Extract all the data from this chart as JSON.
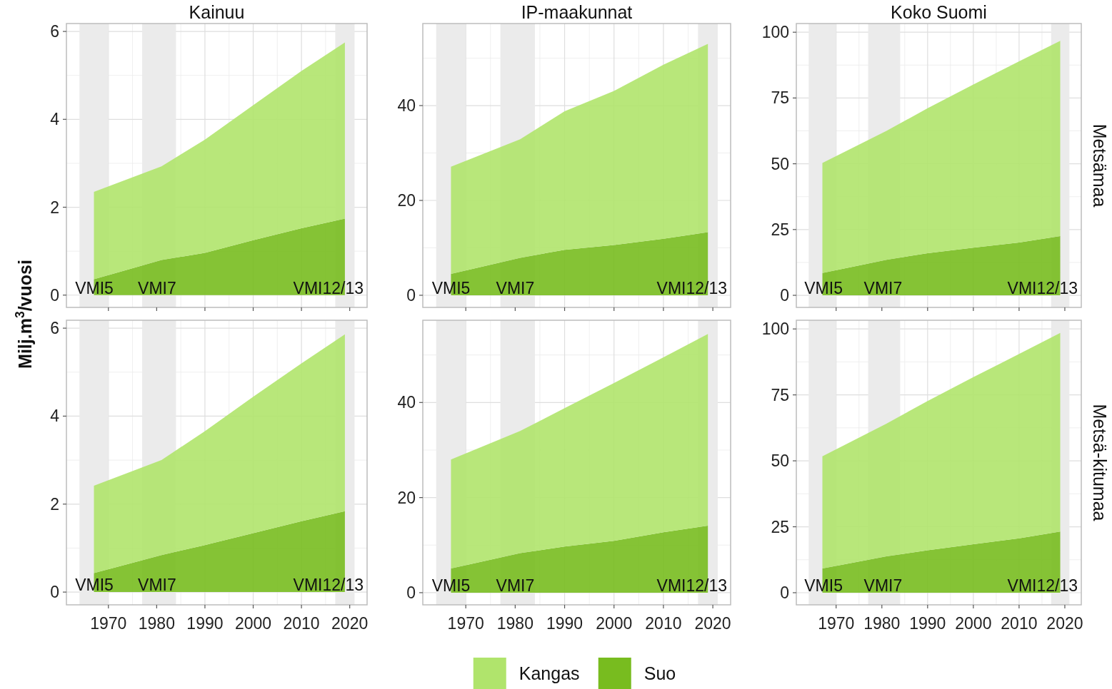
{
  "chart_data": [
    {
      "type": "area",
      "title": "Kainuu",
      "ylabel": "Milj.m$^{3}$/vuosi",
      "stacked": true,
      "x": [
        1967,
        1981,
        1990,
        2000,
        2010,
        2019
      ],
      "series": [
        {
          "name": "Suo",
          "color": "#78bc1f",
          "values": [
            0.36,
            0.8,
            0.96,
            1.25,
            1.52,
            1.74
          ]
        },
        {
          "name": "Kangas",
          "color": "#b0e46c",
          "values": [
            1.99,
            2.13,
            2.58,
            3.07,
            3.58,
            4.01
          ]
        }
      ],
      "xlim": [
        1961.3,
        2023.6
      ],
      "xticks": [
        1970,
        1980,
        1990,
        2000,
        2010,
        2020
      ],
      "ylim": [
        -0.28,
        6.18
      ],
      "yticks": [
        0,
        2,
        4,
        6
      ],
      "bands": [
        {
          "axis": "x",
          "from": 1964,
          "to": 1970,
          "label": "VMI5",
          "color": "#ebebeb"
        },
        {
          "axis": "x",
          "from": 1977,
          "to": 1984,
          "label": "VMI7",
          "color": "#ebebeb"
        },
        {
          "axis": "x",
          "from": 2017,
          "to": 2021,
          "label": "VMI12/13",
          "color": "#ebebeb"
        }
      ],
      "grid": true,
      "tick_labels": "y",
      "legend": "bottom"
    },
    {
      "type": "area",
      "title": "IP-maakunnat",
      "stacked": true,
      "x": [
        1967,
        1981,
        1990,
        2000,
        2010,
        2019
      ],
      "series": [
        {
          "color": "#78bc1f",
          "values": [
            4.5,
            7.9,
            9.6,
            10.6,
            11.9,
            13.3
          ]
        },
        {
          "color": "#b0e46c",
          "values": [
            22.6,
            25.0,
            29.2,
            32.5,
            36.7,
            39.7
          ]
        }
      ],
      "xlim": [
        1961.3,
        2023.6
      ],
      "xticks": [
        1970,
        1980,
        1990,
        2000,
        2010,
        2020
      ],
      "ylim": [
        -2.56,
        57.3
      ],
      "yticks": [
        0,
        20,
        40
      ],
      "bands": [
        {
          "axis": "x",
          "from": 1964,
          "to": 1970,
          "label": "VMI5",
          "color": "#ebebeb"
        },
        {
          "axis": "x",
          "from": 1977,
          "to": 1984,
          "label": "VMI7",
          "color": "#ebebeb"
        },
        {
          "axis": "x",
          "from": 2017,
          "to": 2021,
          "label": "VMI12/13",
          "color": "#ebebeb"
        }
      ],
      "grid": true,
      "tick_labels": "y"
    },
    {
      "type": "area",
      "title": "Koko Suomi",
      "subtitle": "Metsämaa",
      "stacked": true,
      "x": [
        1967,
        1981,
        1990,
        2000,
        2010,
        2019
      ],
      "series": [
        {
          "color": "#78bc1f",
          "values": [
            8.5,
            13.5,
            16.0,
            18.1,
            20.1,
            22.5
          ]
        },
        {
          "color": "#b0e46c",
          "values": [
            41.8,
            49.0,
            55.1,
            62.0,
            68.8,
            74.2
          ]
        }
      ],
      "xlim": [
        1961.3,
        2023.6
      ],
      "xticks": [
        1970,
        1980,
        1990,
        2000,
        2010,
        2020
      ],
      "ylim": [
        -4.6,
        103.3
      ],
      "yticks": [
        0,
        25,
        50,
        75,
        100
      ],
      "bands": [
        {
          "axis": "x",
          "from": 1964,
          "to": 1970,
          "label": "VMI5",
          "color": "#ebebeb"
        },
        {
          "axis": "x",
          "from": 1977,
          "to": 1984,
          "label": "VMI7",
          "color": "#ebebeb"
        },
        {
          "axis": "x",
          "from": 2017,
          "to": 2021,
          "label": "VMI12/13",
          "color": "#ebebeb"
        }
      ],
      "grid": true,
      "tick_labels": "y"
    },
    {
      "type": "area",
      "stacked": true,
      "x": [
        1967,
        1981,
        1990,
        2000,
        2010,
        2019
      ],
      "series": [
        {
          "color": "#78bc1f",
          "values": [
            0.43,
            0.84,
            1.07,
            1.34,
            1.61,
            1.84
          ]
        },
        {
          "color": "#b0e46c",
          "values": [
            1.99,
            2.16,
            2.59,
            3.1,
            3.59,
            4.02
          ]
        }
      ],
      "xlim": [
        1961.3,
        2023.6
      ],
      "xticks": [
        1970,
        1980,
        1990,
        2000,
        2010,
        2020
      ],
      "ylim": [
        -0.29,
        6.18
      ],
      "yticks": [
        0,
        2,
        4,
        6
      ],
      "bands": [
        {
          "axis": "x",
          "from": 1964,
          "to": 1970,
          "label": "VMI5",
          "color": "#ebebeb"
        },
        {
          "axis": "x",
          "from": 1977,
          "to": 1984,
          "label": "VMI7",
          "color": "#ebebeb"
        },
        {
          "axis": "x",
          "from": 2017,
          "to": 2021,
          "label": "VMI12/13",
          "color": "#ebebeb"
        }
      ],
      "grid": true
    },
    {
      "type": "area",
      "stacked": true,
      "x": [
        1967,
        1981,
        1990,
        2000,
        2010,
        2019
      ],
      "series": [
        {
          "color": "#78bc1f",
          "values": [
            5.1,
            8.3,
            9.7,
            10.9,
            12.7,
            14.1
          ]
        },
        {
          "color": "#b0e46c",
          "values": [
            22.9,
            25.7,
            29.1,
            33.2,
            36.8,
            40.3
          ]
        }
      ],
      "xlim": [
        1961.3,
        2023.6
      ],
      "xticks": [
        1970,
        1980,
        1990,
        2000,
        2010,
        2020
      ],
      "ylim": [
        -2.56,
        57.3
      ],
      "yticks": [
        0,
        20,
        40
      ],
      "bands": [
        {
          "axis": "x",
          "from": 1964,
          "to": 1970,
          "label": "VMI5",
          "color": "#ebebeb"
        },
        {
          "axis": "x",
          "from": 1977,
          "to": 1984,
          "label": "VMI7",
          "color": "#ebebeb"
        },
        {
          "axis": "x",
          "from": 2017,
          "to": 2021,
          "label": "VMI12/13",
          "color": "#ebebeb"
        }
      ],
      "grid": true
    },
    {
      "type": "area",
      "subtitle": "Metsä-kitumaa",
      "stacked": true,
      "x": [
        1967,
        1981,
        1990,
        2000,
        2010,
        2019
      ],
      "series": [
        {
          "color": "#78bc1f",
          "values": [
            9.2,
            13.8,
            16.1,
            18.4,
            20.6,
            23.2
          ]
        },
        {
          "color": "#b0e46c",
          "values": [
            42.5,
            50.3,
            56.6,
            63.3,
            69.9,
            75.3
          ]
        }
      ],
      "xlim": [
        1961.3,
        2023.6
      ],
      "xticks": [
        1970,
        1980,
        1990,
        2000,
        2010,
        2020
      ],
      "ylim": [
        -4.6,
        103.3
      ],
      "yticks": [
        0,
        25,
        50,
        75,
        100
      ],
      "bands": [
        {
          "axis": "x",
          "from": 1964,
          "to": 1970,
          "label": "VMI5",
          "color": "#ebebeb"
        },
        {
          "axis": "x",
          "from": 1977,
          "to": 1984,
          "label": "VMI7",
          "color": "#ebebeb"
        },
        {
          "axis": "x",
          "from": 2017,
          "to": 2021,
          "label": "VMI12/13",
          "color": "#ebebeb"
        }
      ],
      "grid": true
    }
  ]
}
